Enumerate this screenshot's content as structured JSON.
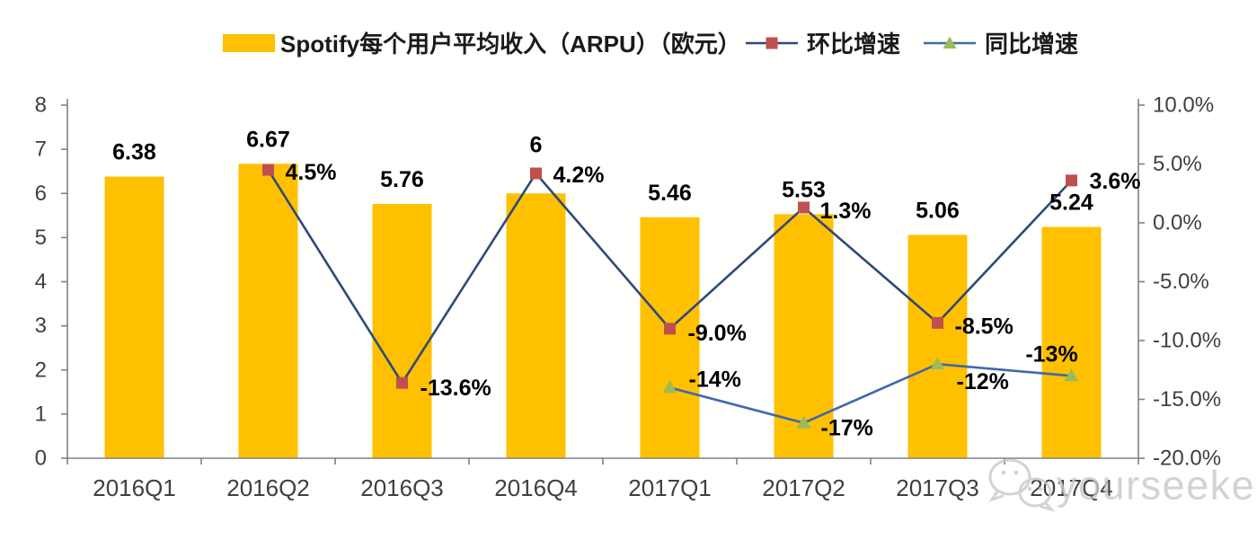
{
  "page": {
    "background": "#fffffe"
  },
  "legend": {
    "position": "top",
    "items": [
      {
        "type": "bar",
        "label": "Spotify每个用户平均收入（ARPU）（欧元）",
        "swatch_color": "#FFC000"
      },
      {
        "type": "line",
        "label": "环比增速",
        "line_color": "#2E4A7A",
        "marker": "square",
        "marker_color": "#C0504D"
      },
      {
        "type": "line",
        "label": "同比增速",
        "line_color": "#4068B0",
        "marker": "triangle",
        "marker_color": "#9BBB59"
      }
    ]
  },
  "chart_data": {
    "type": "bar",
    "subtype": "bar+line combo, dual axis",
    "title": "Spotify每个用户平均收入（ARPU）（欧元）",
    "categories": [
      "2016Q1",
      "2016Q2",
      "2016Q3",
      "2016Q4",
      "2017Q1",
      "2017Q2",
      "2017Q3",
      "2017Q4"
    ],
    "series": [
      {
        "name": "Spotify每个用户平均收入（ARPU）（欧元）",
        "type": "bar",
        "axis": "left",
        "color": "#FFC000",
        "values": [
          6.38,
          6.67,
          5.76,
          6,
          5.46,
          5.53,
          5.06,
          5.24
        ],
        "labels": [
          "6.38",
          "6.67",
          "5.76",
          "6",
          "5.46",
          "5.53",
          "5.06",
          "5.24"
        ],
        "label_dy": [
          -27,
          -27,
          -27,
          -54,
          -27,
          -27,
          -27,
          -27
        ]
      },
      {
        "name": "环比增速",
        "type": "line",
        "axis": "right",
        "line_color": "#2E4A7A",
        "marker": "square",
        "marker_color": "#C0504D",
        "values": [
          null,
          4.5,
          -13.6,
          4.2,
          -9.0,
          1.3,
          -8.5,
          3.6
        ],
        "labels": [
          null,
          "4.5%",
          "-13.6%",
          "4.2%",
          "-9.0%",
          "1.3%",
          "-8.5%",
          "3.6%"
        ],
        "label_offsets": [
          null,
          [
            19,
            3
          ],
          [
            20,
            6
          ],
          [
            19,
            2
          ],
          [
            20,
            5
          ],
          [
            18,
            4
          ],
          [
            19,
            4
          ],
          [
            20,
            1
          ]
        ]
      },
      {
        "name": "同比增速",
        "type": "line",
        "axis": "right",
        "line_color": "#4068B0",
        "marker": "triangle",
        "marker_color": "#9BBB59",
        "values": [
          null,
          null,
          null,
          null,
          -14,
          -17,
          -12,
          -13
        ],
        "labels": [
          null,
          null,
          null,
          null,
          "-14%",
          "-17%",
          "-12%",
          "-13%"
        ],
        "label_offsets": [
          null,
          null,
          null,
          null,
          [
            21,
            -9
          ],
          [
            19,
            6
          ],
          [
            21,
            20
          ],
          [
            -22,
            -24
          ]
        ]
      }
    ],
    "left_axis": {
      "min": 0,
      "max": 8,
      "ticks": [
        "8",
        "7",
        "6",
        "5",
        "4",
        "3",
        "2",
        "1",
        "0"
      ]
    },
    "right_axis": {
      "min": -20,
      "max": 10,
      "ticks": [
        "10.0%",
        "5.0%",
        "0.0%",
        "-5.0%",
        "-10.0%",
        "-15.0%",
        "-20.0%"
      ]
    },
    "grid": false,
    "legend_position": "top"
  },
  "watermark": {
    "icon": "wechat-icon",
    "text": "yourseeker"
  },
  "colors": {
    "bar": "#FFC000",
    "qoq_line": "#2E4A7A",
    "qoq_marker": "#C0504D",
    "yoy_line": "#4068B0",
    "yoy_marker": "#9BBB59",
    "axis_line": "#808080",
    "tick_label": "#3F3F3F",
    "data_label": "#000000",
    "watermark": "#C9C9C9"
  }
}
